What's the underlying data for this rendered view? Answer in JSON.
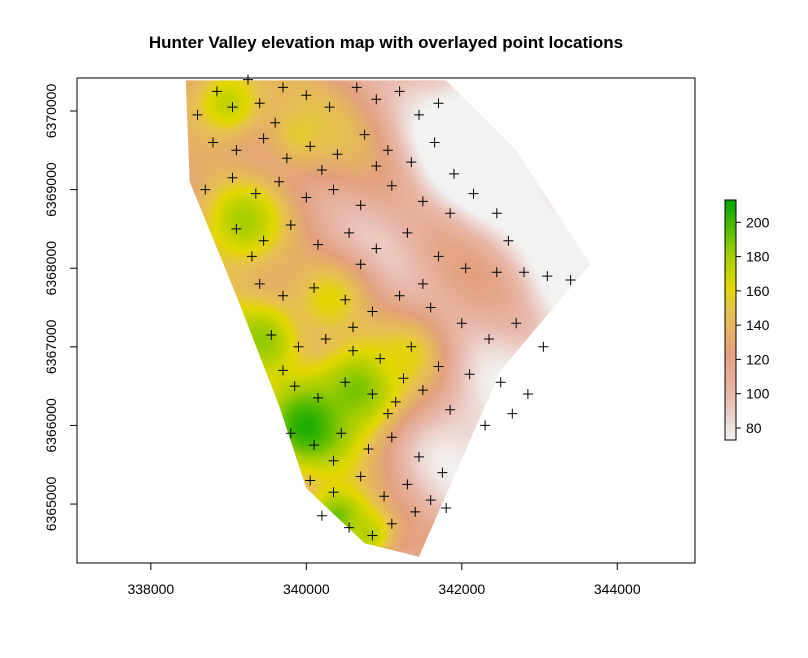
{
  "chart_data": {
    "type": "heatmap",
    "title": "Hunter Valley elevation map with overlayed point locations",
    "xlabel": "",
    "ylabel": "",
    "x_ticks": [
      "338000",
      "340000",
      "342000",
      "344000"
    ],
    "y_ticks": [
      "6365000",
      "6366000",
      "6367000",
      "6368000",
      "6369000",
      "6370000"
    ],
    "x_tick_values": [
      338000,
      340000,
      342000,
      344000
    ],
    "y_tick_values": [
      6365000,
      6366000,
      6367000,
      6368000,
      6369000,
      6370000
    ],
    "xlim": [
      337050,
      345000
    ],
    "ylim": [
      6364250,
      6370420
    ],
    "legend": {
      "placement": "right",
      "ticks": [
        "80",
        "100",
        "120",
        "140",
        "160",
        "180",
        "200"
      ],
      "tick_values": [
        80,
        100,
        120,
        140,
        160,
        180,
        200
      ],
      "range": [
        73,
        213
      ]
    },
    "colors": {
      "low": "#f2f2f2",
      "mid_low": "#e3a07e",
      "mid": "#e3c000",
      "high": "#00a600",
      "point": "#000000"
    },
    "extent_polygon": [
      [
        338450,
        6370390
      ],
      [
        340450,
        6370390
      ],
      [
        341800,
        6370390
      ],
      [
        342700,
        6369500
      ],
      [
        343650,
        6368050
      ],
      [
        342500,
        6366700
      ],
      [
        341450,
        6364330
      ],
      [
        340750,
        6364500
      ],
      [
        340000,
        6365200
      ],
      [
        339650,
        6366250
      ],
      [
        339100,
        6367650
      ],
      [
        338500,
        6369100
      ]
    ],
    "elevation_peaks": [
      [
        340000,
        6366000,
        215,
        400
      ],
      [
        340700,
        6366500,
        195,
        420
      ],
      [
        339450,
        6367100,
        185,
        350
      ],
      [
        340400,
        6364800,
        200,
        300
      ],
      [
        340800,
        6364600,
        170,
        250
      ],
      [
        339000,
        6370100,
        170,
        350
      ],
      [
        339900,
        6369700,
        145,
        300
      ],
      [
        339200,
        6368600,
        175,
        350
      ],
      [
        340300,
        6367600,
        155,
        400
      ],
      [
        341300,
        6366900,
        150,
        350
      ]
    ],
    "points": [
      [
        338600,
        6369950
      ],
      [
        338850,
        6370250
      ],
      [
        339050,
        6370050
      ],
      [
        339400,
        6370100
      ],
      [
        339700,
        6370300
      ],
      [
        340000,
        6370200
      ],
      [
        340300,
        6370050
      ],
      [
        340650,
        6370300
      ],
      [
        340900,
        6370150
      ],
      [
        341200,
        6370250
      ],
      [
        341450,
        6369950
      ],
      [
        341700,
        6370100
      ],
      [
        338800,
        6369600
      ],
      [
        339100,
        6369500
      ],
      [
        339450,
        6369650
      ],
      [
        339750,
        6369400
      ],
      [
        340050,
        6369550
      ],
      [
        340400,
        6369450
      ],
      [
        340750,
        6369700
      ],
      [
        341050,
        6369500
      ],
      [
        341350,
        6369350
      ],
      [
        341650,
        6369600
      ],
      [
        338700,
        6369000
      ],
      [
        339050,
        6369150
      ],
      [
        339350,
        6368950
      ],
      [
        339650,
        6369100
      ],
      [
        340000,
        6368900
      ],
      [
        340350,
        6369000
      ],
      [
        340700,
        6368800
      ],
      [
        341100,
        6369050
      ],
      [
        341500,
        6368850
      ],
      [
        341850,
        6368700
      ],
      [
        342150,
        6368950
      ],
      [
        342450,
        6368700
      ],
      [
        339100,
        6368500
      ],
      [
        339450,
        6368350
      ],
      [
        339800,
        6368550
      ],
      [
        340150,
        6368300
      ],
      [
        340550,
        6368450
      ],
      [
        340900,
        6368250
      ],
      [
        341300,
        6368450
      ],
      [
        341700,
        6368150
      ],
      [
        342050,
        6368000
      ],
      [
        342450,
        6367950
      ],
      [
        342800,
        6367950
      ],
      [
        343100,
        6367900
      ],
      [
        343400,
        6367850
      ],
      [
        339400,
        6367800
      ],
      [
        339700,
        6367650
      ],
      [
        340100,
        6367750
      ],
      [
        340500,
        6367600
      ],
      [
        340850,
        6367450
      ],
      [
        341200,
        6367650
      ],
      [
        341600,
        6367500
      ],
      [
        342000,
        6367300
      ],
      [
        342350,
        6367100
      ],
      [
        342700,
        6367300
      ],
      [
        343050,
        6367000
      ],
      [
        339550,
        6367150
      ],
      [
        339900,
        6367000
      ],
      [
        340250,
        6367100
      ],
      [
        340600,
        6366950
      ],
      [
        340950,
        6366850
      ],
      [
        341350,
        6367000
      ],
      [
        341700,
        6366750
      ],
      [
        342100,
        6366650
      ],
      [
        342500,
        6366550
      ],
      [
        342850,
        6366400
      ],
      [
        339850,
        6366500
      ],
      [
        340150,
        6366350
      ],
      [
        340500,
        6366550
      ],
      [
        340850,
        6366400
      ],
      [
        341150,
        6366300
      ],
      [
        341500,
        6366450
      ],
      [
        341850,
        6366200
      ],
      [
        342300,
        6366000
      ],
      [
        342650,
        6366150
      ],
      [
        339800,
        6365900
      ],
      [
        340100,
        6365750
      ],
      [
        340450,
        6365900
      ],
      [
        340800,
        6365700
      ],
      [
        341100,
        6365850
      ],
      [
        341450,
        6365600
      ],
      [
        341750,
        6365400
      ],
      [
        340050,
        6365300
      ],
      [
        340350,
        6365150
      ],
      [
        340700,
        6365350
      ],
      [
        341000,
        6365100
      ],
      [
        341300,
        6365250
      ],
      [
        341600,
        6365050
      ],
      [
        340200,
        6364850
      ],
      [
        340550,
        6364700
      ],
      [
        340850,
        6364600
      ],
      [
        341100,
        6364750
      ],
      [
        341400,
        6364900
      ],
      [
        339250,
        6370400
      ],
      [
        339600,
        6369850
      ],
      [
        340200,
        6369250
      ],
      [
        340900,
        6369300
      ],
      [
        341900,
        6369200
      ],
      [
        339300,
        6368150
      ],
      [
        340700,
        6368050
      ],
      [
        341500,
        6367800
      ],
      [
        339700,
        6366700
      ],
      [
        341050,
        6366150
      ],
      [
        340350,
        6365550
      ],
      [
        341800,
        6364950
      ],
      [
        342600,
        6368350
      ],
      [
        340600,
        6367250
      ],
      [
        341250,
        6366600
      ]
    ]
  }
}
